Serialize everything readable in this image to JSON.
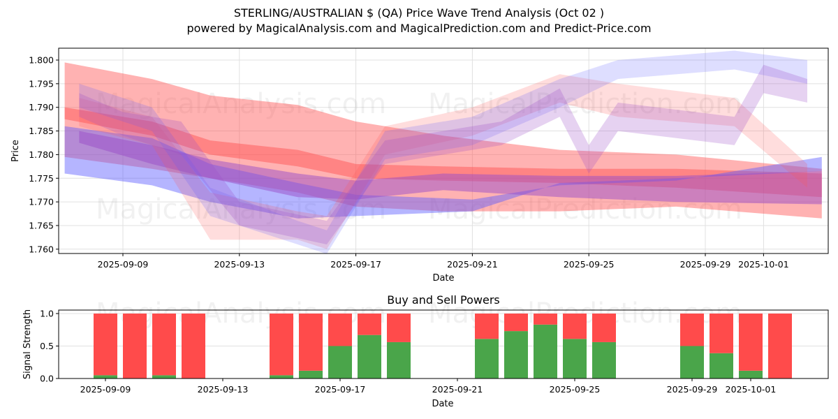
{
  "header": {
    "title": "STERLING/AUSTRALIAN $ (QA) Price Wave Trend Analysis (Oct 02 )",
    "subtitle": "powered by MagicalAnalysis.com and MagicalPrediction.com and Predict-Price.com"
  },
  "watermarks": [
    "MagicalAnalysis.com",
    "MagicalPrediction.com"
  ],
  "colors": {
    "buy": "#4aa54a",
    "sell": "#ff4b4b",
    "band_red": "#ff6b6b",
    "band_blue": "#6b6bff"
  },
  "chart_data": [
    {
      "type": "area",
      "title": "",
      "xlabel": "Date",
      "ylabel": "Price",
      "x_ticks": [
        "2025-09-09",
        "2025-09-13",
        "2025-09-17",
        "2025-09-21",
        "2025-09-25",
        "2025-09-29",
        "2025-10-01"
      ],
      "y_ticks": [
        "1.760",
        "1.765",
        "1.770",
        "1.775",
        "1.780",
        "1.785",
        "1.790",
        "1.795",
        "1.800"
      ],
      "ylim": [
        1.759,
        1.8025
      ],
      "xlim": [
        "2025-09-06.8",
        "2025-10-03.3"
      ],
      "grid": true,
      "series": [
        {
          "name": "wave-red-1",
          "color": "red",
          "alpha": 0.45,
          "x": [
            "2025-09-07",
            "2025-09-10",
            "2025-09-12",
            "2025-09-15",
            "2025-09-17",
            "2025-09-20",
            "2025-09-24",
            "2025-09-28",
            "2025-10-03"
          ],
          "upper": [
            1.7995,
            1.796,
            1.7925,
            1.7905,
            1.787,
            1.784,
            1.781,
            1.78,
            1.777
          ],
          "lower": [
            1.7795,
            1.777,
            1.775,
            1.772,
            1.769,
            1.768,
            1.768,
            1.769,
            1.7665
          ]
        },
        {
          "name": "wave-red-2",
          "color": "red",
          "alpha": 0.5,
          "x": [
            "2025-09-07",
            "2025-09-10",
            "2025-09-12",
            "2025-09-15",
            "2025-09-17",
            "2025-09-20",
            "2025-09-24",
            "2025-09-28",
            "2025-10-03"
          ],
          "upper": [
            1.79,
            1.787,
            1.783,
            1.781,
            1.778,
            1.7775,
            1.777,
            1.777,
            1.776
          ],
          "lower": [
            1.7875,
            1.784,
            1.78,
            1.7775,
            1.775,
            1.7745,
            1.774,
            1.773,
            1.771
          ]
        },
        {
          "name": "wave-blue-1",
          "color": "blue",
          "alpha": 0.45,
          "x": [
            "2025-09-07",
            "2025-09-10",
            "2025-09-12",
            "2025-09-15",
            "2025-09-17",
            "2025-09-21",
            "2025-09-24",
            "2025-09-28",
            "2025-10-03"
          ],
          "upper": [
            1.786,
            1.7835,
            1.778,
            1.774,
            1.7715,
            1.7705,
            1.7735,
            1.7745,
            1.7795
          ],
          "lower": [
            1.776,
            1.7735,
            1.77,
            1.7665,
            1.767,
            1.768,
            1.774,
            1.775,
            1.7765
          ]
        },
        {
          "name": "wave-purple-1",
          "color": "purple",
          "alpha": 0.5,
          "x": [
            "2025-09-07.5",
            "2025-09-10",
            "2025-09-12",
            "2025-09-15",
            "2025-09-17",
            "2025-09-20",
            "2025-09-24",
            "2025-09-28",
            "2025-10-03"
          ],
          "upper": [
            1.785,
            1.782,
            1.779,
            1.776,
            1.7745,
            1.776,
            1.7755,
            1.7755,
            1.7765
          ],
          "lower": [
            1.7825,
            1.778,
            1.775,
            1.771,
            1.7705,
            1.7725,
            1.771,
            1.77,
            1.7695
          ]
        },
        {
          "name": "wave-light-red-1",
          "color": "red",
          "alpha": 0.2,
          "x": [
            "2025-09-07.5",
            "2025-09-10",
            "2025-09-12",
            "2025-09-15",
            "2025-09-16",
            "2025-09-18",
            "2025-09-21",
            "2025-09-24",
            "2025-09-26",
            "2025-09-30",
            "2025-10-02.5"
          ],
          "upper": [
            1.792,
            1.788,
            1.772,
            1.768,
            1.767,
            1.786,
            1.79,
            1.797,
            1.795,
            1.792,
            1.778
          ],
          "lower": [
            1.786,
            1.782,
            1.762,
            1.762,
            1.76,
            1.78,
            1.784,
            1.791,
            1.788,
            1.786,
            1.773
          ]
        },
        {
          "name": "wave-light-blue-1",
          "color": "blue",
          "alpha": 0.2,
          "x": [
            "2025-09-07.5",
            "2025-09-10",
            "2025-09-12",
            "2025-09-15",
            "2025-09-16",
            "2025-09-18",
            "2025-09-21",
            "2025-09-24",
            "2025-09-26",
            "2025-09-30",
            "2025-10-02.5"
          ],
          "upper": [
            1.795,
            1.79,
            1.773,
            1.766,
            1.764,
            1.785,
            1.788,
            1.796,
            1.8,
            1.802,
            1.8
          ],
          "lower": [
            1.79,
            1.785,
            1.767,
            1.761,
            1.759,
            1.779,
            1.782,
            1.79,
            1.796,
            1.798,
            1.795
          ]
        },
        {
          "name": "wave-light-purple-1",
          "color": "purple",
          "alpha": 0.25,
          "x": [
            "2025-09-07.5",
            "2025-09-09",
            "2025-09-11",
            "2025-09-13",
            "2025-09-16",
            "2025-09-18",
            "2025-09-22",
            "2025-09-24",
            "2025-09-25",
            "2025-09-26",
            "2025-09-30",
            "2025-10-01",
            "2025-10-02.5"
          ],
          "upper": [
            1.793,
            1.789,
            1.787,
            1.77,
            1.766,
            1.783,
            1.787,
            1.794,
            1.782,
            1.791,
            1.788,
            1.799,
            1.796
          ],
          "lower": [
            1.788,
            1.784,
            1.78,
            1.765,
            1.761,
            1.778,
            1.782,
            1.788,
            1.776,
            1.785,
            1.782,
            1.793,
            1.791
          ]
        }
      ]
    },
    {
      "type": "bar",
      "title": "Buy and Sell Powers",
      "xlabel": "Date",
      "ylabel": "Signal Strength",
      "x_ticks": [
        "2025-09-09",
        "2025-09-13",
        "2025-09-17",
        "2025-09-21",
        "2025-09-25",
        "2025-09-29",
        "2025-10-01"
      ],
      "y_ticks": [
        "0.0",
        "0.5",
        "1.0"
      ],
      "ylim": [
        0,
        1.05
      ],
      "grid": true,
      "categories": [
        "2025-09-09",
        "2025-09-10",
        "2025-09-11",
        "2025-09-12",
        "2025-09-15",
        "2025-09-16",
        "2025-09-17",
        "2025-09-18",
        "2025-09-19",
        "2025-09-22",
        "2025-09-23",
        "2025-09-24",
        "2025-09-25",
        "2025-09-26",
        "2025-09-29",
        "2025-09-30",
        "2025-10-01",
        "2025-10-02"
      ],
      "series": [
        {
          "name": "Buy",
          "color": "green",
          "values": [
            0.05,
            0.0,
            0.05,
            0.0,
            0.05,
            0.12,
            0.5,
            0.67,
            0.56,
            0.61,
            0.73,
            0.83,
            0.61,
            0.56,
            0.5,
            0.39,
            0.12,
            0.0
          ]
        },
        {
          "name": "Sell",
          "color": "red",
          "values": [
            0.95,
            1.0,
            0.95,
            1.0,
            0.95,
            0.88,
            0.5,
            0.33,
            0.44,
            0.39,
            0.27,
            0.17,
            0.39,
            0.44,
            0.5,
            0.61,
            0.88,
            1.0
          ]
        }
      ]
    }
  ]
}
